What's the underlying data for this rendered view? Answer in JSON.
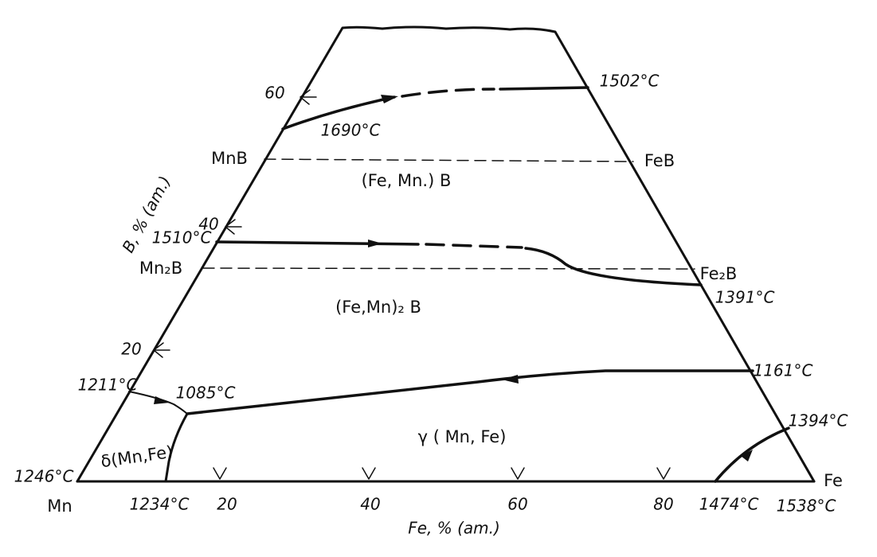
{
  "axes": {
    "left": {
      "label": "B, % (am.)",
      "ticks": [
        "60",
        "40",
        "20"
      ]
    },
    "bottom": {
      "label": "Fe, % (am.)",
      "ticks": [
        "20",
        "40",
        "60",
        "80"
      ]
    }
  },
  "corners": {
    "left": "Mn",
    "right": "Fe"
  },
  "compounds": {
    "mnb": "MnB",
    "feb": "FeB",
    "mn2b": "Mn₂B",
    "fe2b": "Fe₂B"
  },
  "phases": {
    "feMnB": "(Fe, Mn.) B",
    "feMn2B": "(Fe,Mn)₂ B",
    "gamma": "γ ( Mn, Fe)",
    "delta": "δ(Mn,Fe)"
  },
  "temperatures": {
    "t1502": "1502°C",
    "t1690": "1690°C",
    "t1510": "1510°C",
    "t1391": "1391°C",
    "t1161": "1161°C",
    "t1211": "1211°C",
    "t1085": "1085°C",
    "t1394": "1394°C",
    "t1246": "1246°C",
    "t1234": "1234°C",
    "t1474": "1474°C",
    "t1538": "1538°C"
  }
}
